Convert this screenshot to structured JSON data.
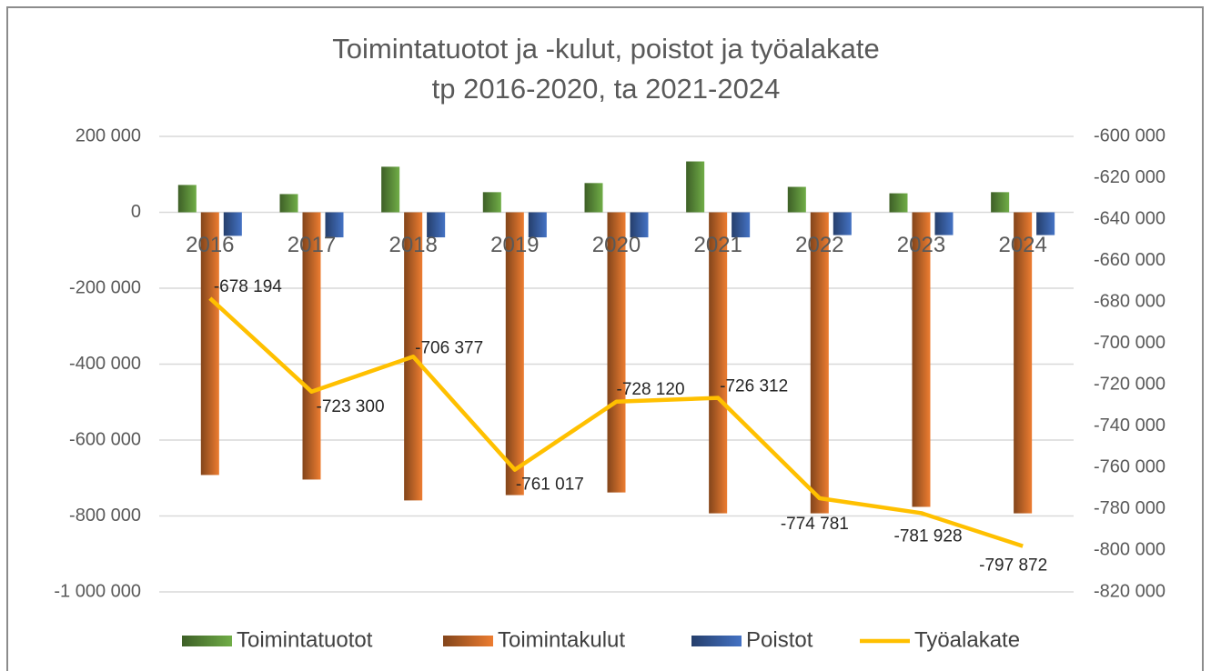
{
  "chart_data": {
    "type": "bar",
    "title": "Toimintatuotot ja -kulut, poistot ja työalakate",
    "subtitle": "tp 2016-2020, ta 2021-2024",
    "categories": [
      "2016",
      "2017",
      "2018",
      "2019",
      "2020",
      "2021",
      "2022",
      "2023",
      "2024"
    ],
    "series": [
      {
        "name": "Toimintatuotot",
        "color": "#70ad47",
        "values": [
          72000,
          48000,
          120000,
          53000,
          77000,
          134000,
          67000,
          50000,
          53000
        ]
      },
      {
        "name": "Toimintakulut",
        "color": "#ed7d31",
        "values": [
          -692000,
          -704000,
          -759000,
          -745000,
          -738000,
          -793000,
          -793000,
          -776000,
          -793000
        ]
      },
      {
        "name": "Poistot",
        "color": "#4472c4",
        "values": [
          -62000,
          -66000,
          -66000,
          -66000,
          -66000,
          -66000,
          -60000,
          -60000,
          -60000
        ]
      },
      {
        "name": "Työalakate",
        "type": "line",
        "axis": "y2",
        "color": "#ffc000",
        "values": [
          -678194,
          -723300,
          -706377,
          -761017,
          -728120,
          -726312,
          -774781,
          -781928,
          -797872
        ],
        "value_labels": [
          "-678 194",
          "-723 300",
          "-706 377",
          "-761 017",
          "-728 120",
          "-726 312",
          "-774 781",
          "-781 928",
          "-797 872"
        ]
      }
    ],
    "ylim": [
      -1000000,
      200000
    ],
    "yticks": [
      {
        "value": 200000,
        "label": "200 000"
      },
      0,
      {
        "value": -200000,
        "label": "-200 000"
      },
      {
        "value": -400000,
        "label": "-400 000"
      },
      {
        "value": -600000,
        "label": "-600 000"
      },
      {
        "value": -800000,
        "label": "-800 000"
      },
      {
        "value": -1000000,
        "label": "-1 000 000"
      }
    ],
    "y2lim": [
      -820000,
      -600000
    ],
    "y2ticks": [
      {
        "value": -600000,
        "label": "-600 000"
      },
      {
        "value": -620000,
        "label": "-620 000"
      },
      {
        "value": -640000,
        "label": "-640 000"
      },
      {
        "value": -660000,
        "label": "-660 000"
      },
      {
        "value": -680000,
        "label": "-680 000"
      },
      {
        "value": -700000,
        "label": "-700 000"
      },
      {
        "value": -720000,
        "label": "-720 000"
      },
      {
        "value": -740000,
        "label": "-740 000"
      },
      {
        "value": -760000,
        "label": "-760 000"
      },
      {
        "value": -780000,
        "label": "-780 000"
      },
      {
        "value": -800000,
        "label": "-800 000"
      },
      {
        "value": -820000,
        "label": "-820 000"
      }
    ],
    "grid": true,
    "legend": "bottom"
  }
}
